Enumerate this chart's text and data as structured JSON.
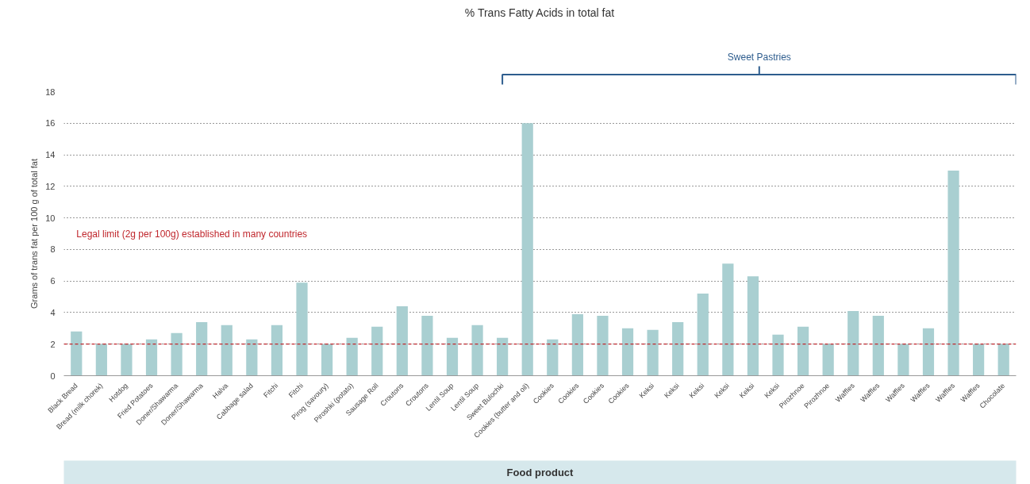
{
  "chart_data": {
    "type": "bar",
    "title": "% Trans Fatty Acids in total fat",
    "xlabel": "Food product",
    "ylabel": "Grams of trans fat per 100 g of total fat",
    "categories": [
      "Black Bread",
      "Bread (milk chorek)",
      "Hotdog",
      "Fried Potatoes",
      "Doner/Shawarma",
      "Doner/Shawarma",
      "Halva",
      "Cabbage salad",
      "Fitchi",
      "Fitchi",
      "Pirog (savoury)",
      "Piroshki (potato)",
      "Sausage Roll",
      "Croutons",
      "Croutons",
      "Lentil Soup",
      "Lentil Soup",
      "Sweet Bulochki",
      "Cookies (butter and oil)",
      "Cookies",
      "Cookies",
      "Cookies",
      "Cookies",
      "Keksi",
      "Keksi",
      "Keksi",
      "Keksi",
      "Keksi",
      "Keksi",
      "Pirozhnoe",
      "Pirozhnoe",
      "Waffles",
      "Waffles",
      "Waffles",
      "Waffles",
      "Waffles",
      "Waffles",
      "Chocolate"
    ],
    "values": [
      2.8,
      2.0,
      2.0,
      2.3,
      2.7,
      3.4,
      3.2,
      2.3,
      3.2,
      5.9,
      2.0,
      2.4,
      3.1,
      4.4,
      3.8,
      2.4,
      3.2,
      2.4,
      16.0,
      2.3,
      3.9,
      3.8,
      3.0,
      2.9,
      3.4,
      5.2,
      7.1,
      6.3,
      2.6,
      3.1,
      2.0,
      4.1,
      3.8,
      2.0,
      3.0,
      13.0,
      2.0,
      2.0
    ],
    "color": "#a9cfd1",
    "ylim": [
      0,
      18
    ],
    "yticks": [
      0,
      2,
      4,
      6,
      8,
      10,
      12,
      14,
      16,
      18
    ],
    "grid": "y",
    "ref_lines": [
      {
        "axis": "y",
        "value": 2,
        "label": "Legal limit (2g per 100g) established in many countries",
        "color": "#c0272d",
        "line_style": "dashed"
      }
    ],
    "annotations": [
      "Sweet Pastries"
    ]
  }
}
